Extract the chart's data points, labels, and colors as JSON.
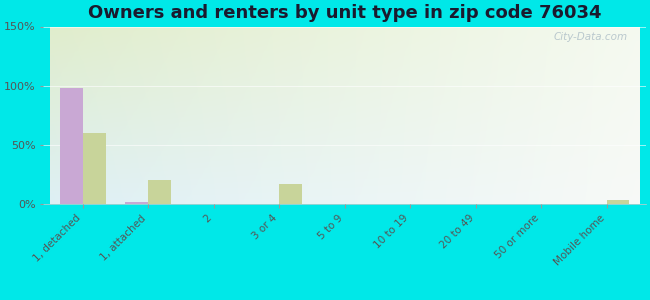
{
  "title": "Owners and renters by unit type in zip code 76034",
  "categories": [
    "1, detached",
    "1, attached",
    "2",
    "3 or 4",
    "5 to 9",
    "10 to 19",
    "20 to 49",
    "50 or more",
    "Mobile home"
  ],
  "owner_values": [
    98,
    2,
    0,
    0,
    0,
    0,
    0,
    0,
    0
  ],
  "renter_values": [
    60,
    20,
    0,
    17,
    0,
    0,
    0,
    0,
    3
  ],
  "owner_color": "#c9a8d4",
  "renter_color": "#c8d49a",
  "background_color": "#00e8e8",
  "ylim": [
    0,
    150
  ],
  "yticks": [
    0,
    50,
    100,
    150
  ],
  "ytick_labels": [
    "0%",
    "50%",
    "100%",
    "150%"
  ],
  "bar_width": 0.35,
  "title_fontsize": 13,
  "watermark": "City-Data.com"
}
